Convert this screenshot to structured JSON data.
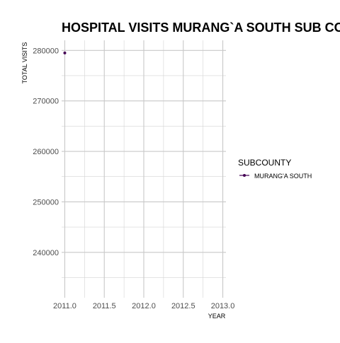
{
  "chart_data": {
    "type": "line",
    "title": "HOSPITAL VISITS MURANG`A SOUTH SUB COUNTY",
    "xlabel": "YEAR",
    "ylabel": "TOTAL VISITS",
    "xlim": [
      2010.96,
      2013.04
    ],
    "ylim": [
      231000,
      282000
    ],
    "x_ticks": [
      2011.0,
      2011.5,
      2012.0,
      2012.5,
      2013.0
    ],
    "x_tick_labels": [
      "2011.0",
      "2011.5",
      "2012.0",
      "2012.5",
      "2013.0"
    ],
    "y_ticks": [
      240000,
      250000,
      260000,
      270000,
      280000
    ],
    "y_tick_labels": [
      "240000",
      "250000",
      "260000",
      "270000",
      "280000"
    ],
    "grid": true,
    "legend": {
      "title": "SUBCOUNTY",
      "position": "right",
      "entries": [
        "MURANG'A SOUTH"
      ]
    },
    "series": [
      {
        "name": "MURANG'A SOUTH",
        "color": "#440154",
        "x": [
          2011.0
        ],
        "y": [
          279500
        ]
      }
    ]
  }
}
